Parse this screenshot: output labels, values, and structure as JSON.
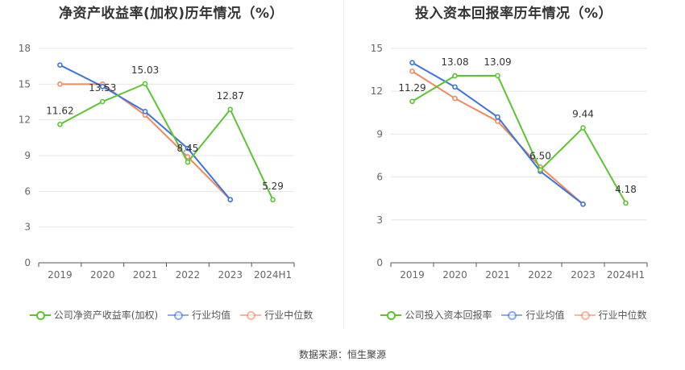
{
  "source_label": "数据来源：恒生聚源",
  "colors": {
    "company": "#5cc430",
    "industry_avg": "#3d74e0",
    "industry_median": "#f0895c",
    "grid": "#e6e6e6",
    "axis": "#999999"
  },
  "chart_data": [
    {
      "type": "line",
      "title": "净资产收益率(加权)历年情况（%）",
      "categories": [
        "2019",
        "2020",
        "2021",
        "2022",
        "2023",
        "2024H1"
      ],
      "ylim": [
        0,
        18
      ],
      "yticks": [
        0,
        3,
        6,
        9,
        12,
        15,
        18
      ],
      "grid": true,
      "legend_placement": "bottom",
      "series": [
        {
          "name": "公司净资产收益率(加权)",
          "color_key": "company",
          "labeled": true,
          "values": [
            11.62,
            13.53,
            15.03,
            8.45,
            12.87,
            5.29
          ]
        },
        {
          "name": "行业均值",
          "color_key": "industry_avg",
          "labeled": false,
          "values": [
            16.6,
            14.8,
            12.7,
            9.6,
            5.3,
            null
          ]
        },
        {
          "name": "行业中位数",
          "color_key": "industry_median",
          "labeled": false,
          "values": [
            15.0,
            15.0,
            12.4,
            8.9,
            5.3,
            null
          ]
        }
      ]
    },
    {
      "type": "line",
      "title": "投入资本回报率历年情况（%）",
      "categories": [
        "2019",
        "2020",
        "2021",
        "2022",
        "2023",
        "2024H1"
      ],
      "ylim": [
        0,
        15
      ],
      "yticks": [
        0,
        3,
        6,
        9,
        12,
        15
      ],
      "grid": true,
      "legend_placement": "bottom",
      "series": [
        {
          "name": "公司投入资本回报率",
          "color_key": "company",
          "labeled": true,
          "values": [
            11.29,
            13.08,
            13.09,
            6.5,
            9.44,
            4.18
          ]
        },
        {
          "name": "行业均值",
          "color_key": "industry_avg",
          "labeled": false,
          "values": [
            14.0,
            12.3,
            10.2,
            6.4,
            4.1,
            null
          ]
        },
        {
          "name": "行业中位数",
          "color_key": "industry_median",
          "labeled": false,
          "values": [
            13.4,
            11.5,
            9.9,
            6.7,
            4.1,
            null
          ]
        }
      ]
    }
  ]
}
